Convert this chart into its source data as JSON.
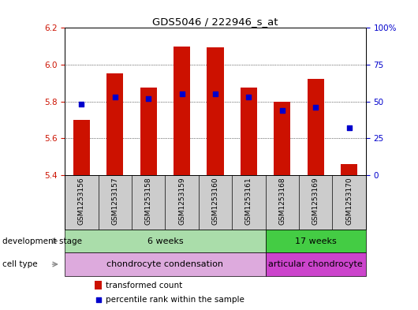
{
  "title": "GDS5046 / 222946_s_at",
  "samples": [
    "GSM1253156",
    "GSM1253157",
    "GSM1253158",
    "GSM1253159",
    "GSM1253160",
    "GSM1253161",
    "GSM1253168",
    "GSM1253169",
    "GSM1253170"
  ],
  "bar_values": [
    5.7,
    5.955,
    5.875,
    6.1,
    6.095,
    5.875,
    5.8,
    5.925,
    5.46
  ],
  "bar_base": 5.4,
  "percentile_values": [
    48,
    53,
    52,
    55,
    55,
    53,
    44,
    46,
    32
  ],
  "ylim_left": [
    5.4,
    6.2
  ],
  "ylim_right": [
    0,
    100
  ],
  "yticks_left": [
    5.4,
    5.6,
    5.8,
    6.0,
    6.2
  ],
  "yticks_right": [
    0,
    25,
    50,
    75,
    100
  ],
  "ytick_labels_right": [
    "0",
    "25",
    "50",
    "75",
    "100%"
  ],
  "bar_color": "#cc1100",
  "dot_color": "#0000cc",
  "background_color": "#ffffff",
  "dev_stage_row": [
    {
      "label": "6 weeks",
      "span": [
        0,
        6
      ],
      "color": "#aaddaa"
    },
    {
      "label": "17 weeks",
      "span": [
        6,
        9
      ],
      "color": "#44cc44"
    }
  ],
  "cell_type_row": [
    {
      "label": "chondrocyte condensation",
      "span": [
        0,
        6
      ],
      "color": "#ddaadd"
    },
    {
      "label": "articular chondrocyte",
      "span": [
        6,
        9
      ],
      "color": "#cc44cc"
    }
  ],
  "legend_bar_label": "transformed count",
  "legend_dot_label": "percentile rank within the sample",
  "row_label_dev": "development stage",
  "row_label_cell": "cell type",
  "tick_label_color_left": "#cc1100",
  "tick_label_color_right": "#0000cc",
  "bar_width": 0.5,
  "sample_bg": "#cccccc",
  "arrow_color": "#888888"
}
